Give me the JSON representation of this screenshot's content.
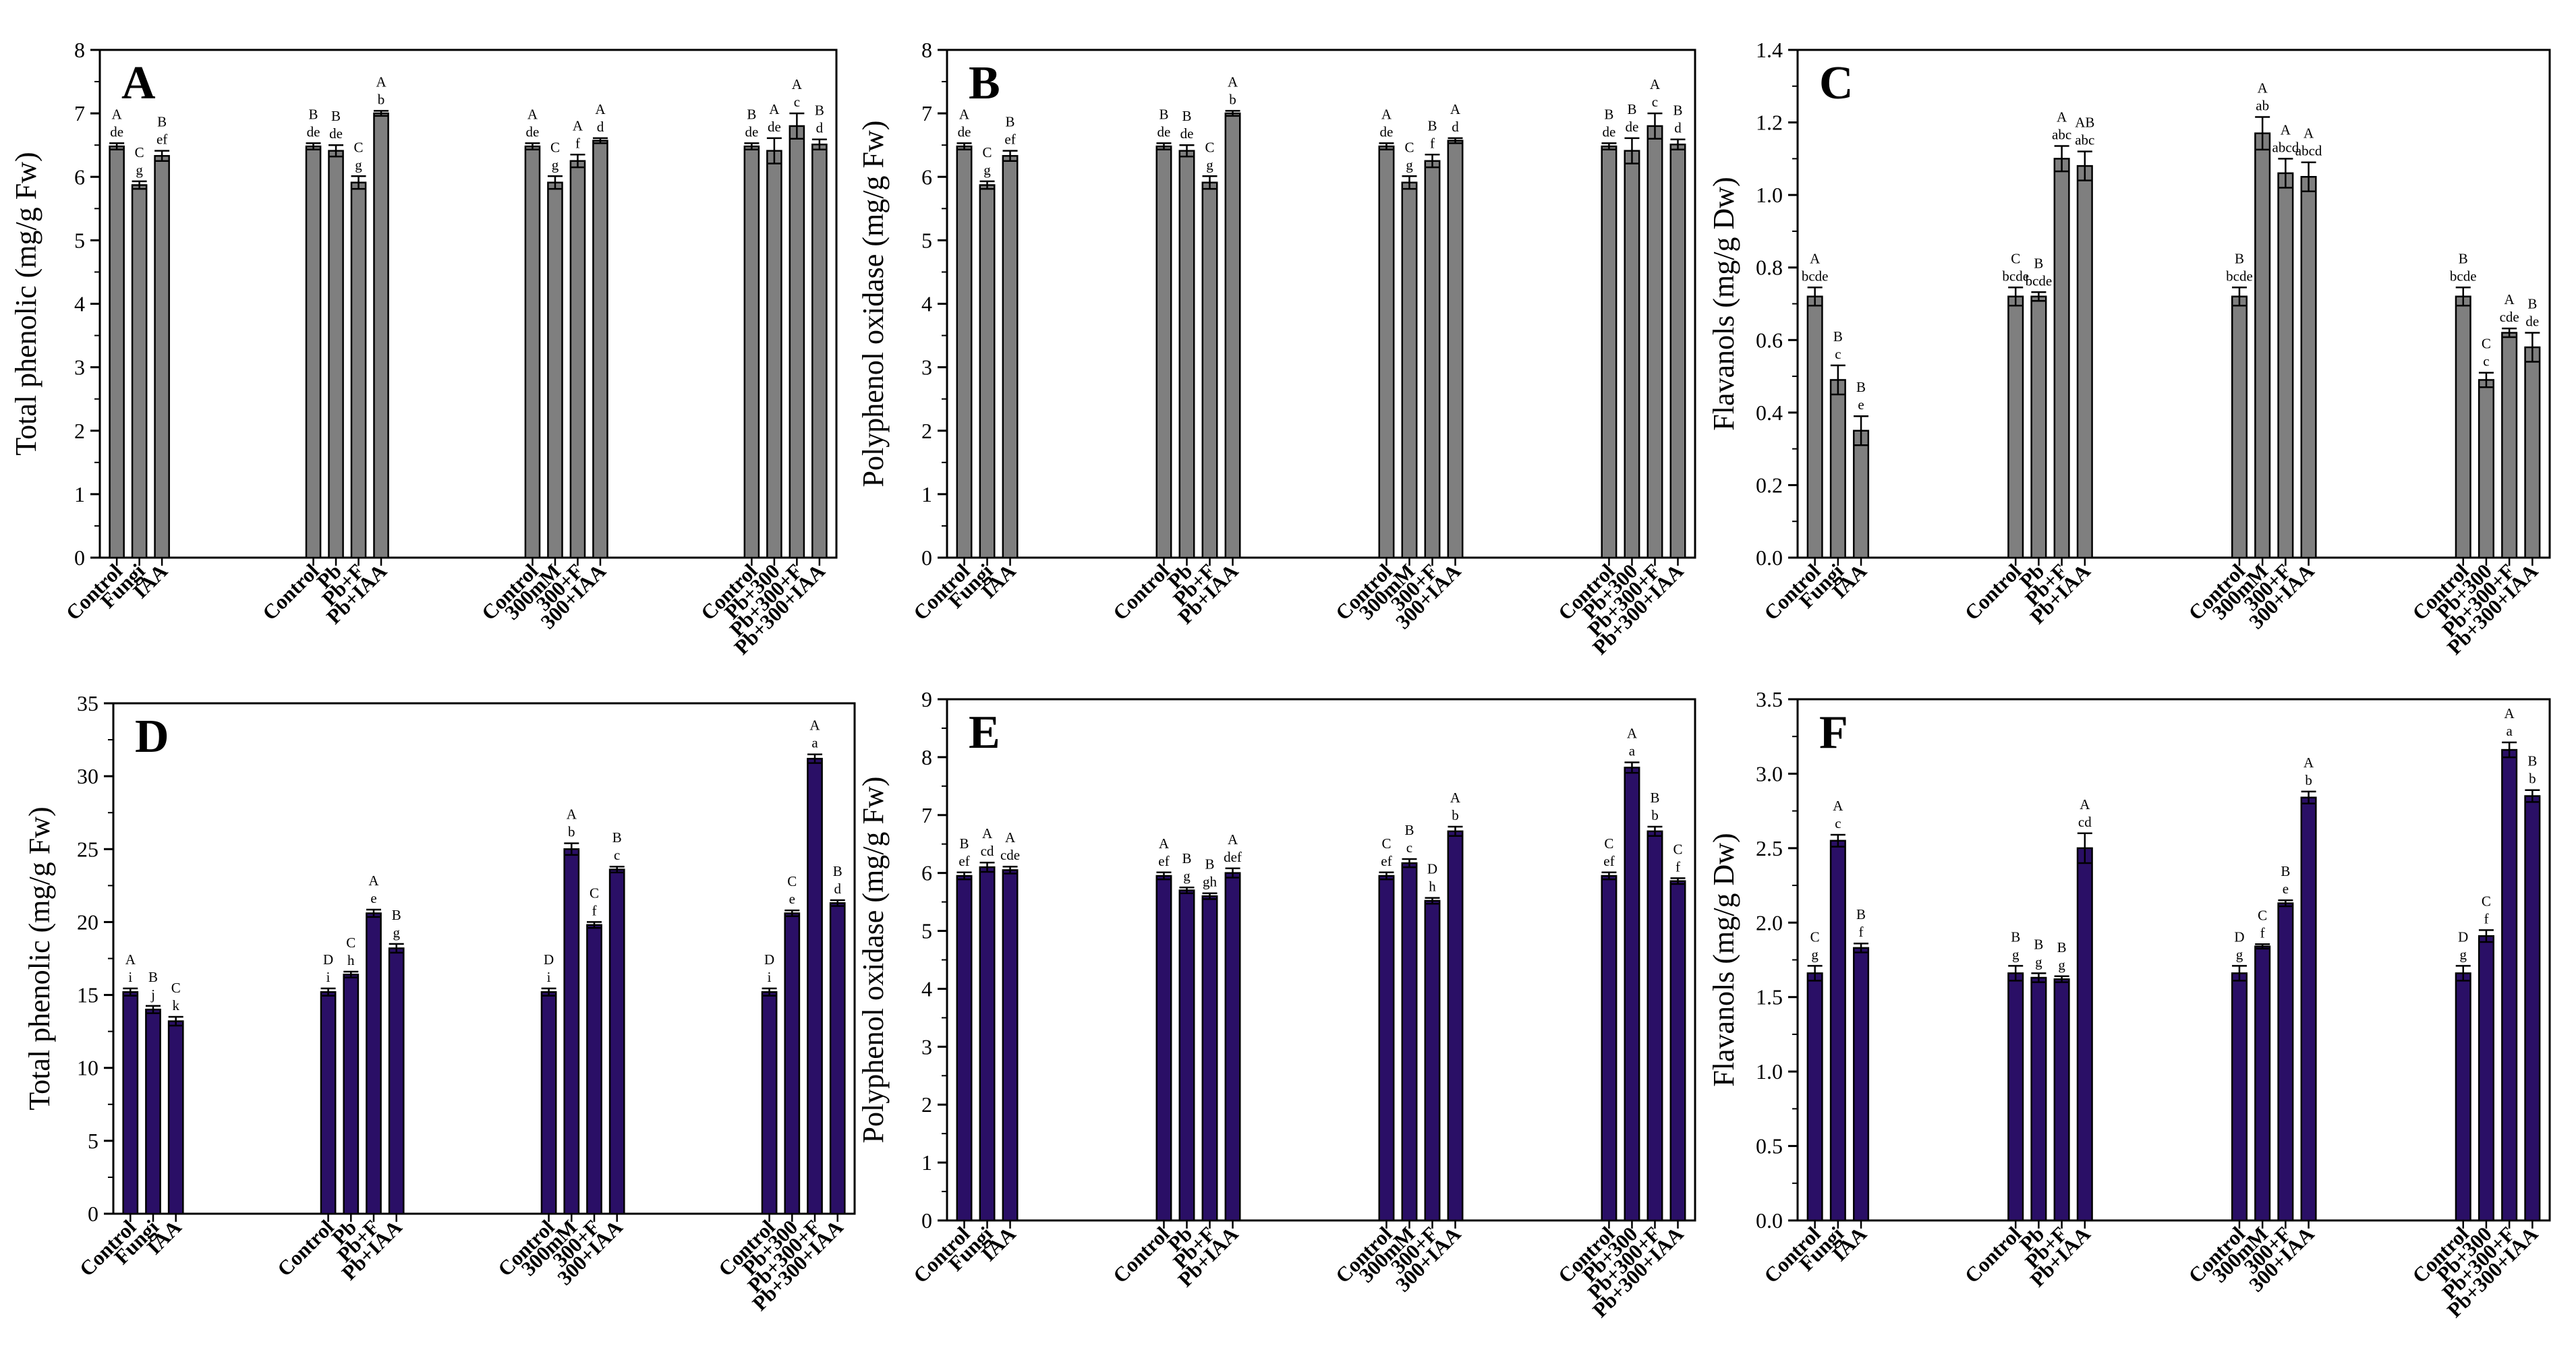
{
  "figure": {
    "background": "#ffffff"
  },
  "chart_data": [
    {
      "id": "A",
      "type": "bar",
      "panel_label": "A",
      "ylabel": "Total phenolic (mg/g Fw)",
      "ylim": [
        0,
        8
      ],
      "yticks": [
        0,
        1,
        2,
        3,
        4,
        5,
        6,
        7,
        8
      ],
      "tick_labels": [
        "0",
        "1",
        "2",
        "3",
        "4",
        "5",
        "6",
        "7",
        "8"
      ],
      "bar_color": "#7f7f7f",
      "groups": [
        {
          "categories": [
            "Control",
            "Fungi",
            "IAA"
          ],
          "values": [
            6.48,
            5.87,
            6.33
          ],
          "errors": [
            0.05,
            0.06,
            0.08
          ],
          "sig_caps": [
            "A",
            "C",
            "B"
          ],
          "sig_lower": [
            "de",
            "g",
            "ef"
          ]
        },
        {
          "categories": [
            "Control",
            "Pb",
            "Pb+F",
            "Pb+IAA"
          ],
          "values": [
            6.48,
            6.41,
            5.91,
            7.0
          ],
          "errors": [
            0.05,
            0.09,
            0.1,
            0.04
          ],
          "sig_caps": [
            "B",
            "B",
            "C",
            "A"
          ],
          "sig_lower": [
            "de",
            "de",
            "g",
            "b"
          ]
        },
        {
          "categories": [
            "Control",
            "300mM",
            "300+F",
            "300+IAA"
          ],
          "values": [
            6.48,
            5.91,
            6.25,
            6.57
          ],
          "errors": [
            0.05,
            0.1,
            0.1,
            0.04
          ],
          "sig_caps": [
            "A",
            "C",
            "A",
            "A"
          ],
          "sig_lower": [
            "de",
            "g",
            "f",
            "d"
          ]
        },
        {
          "categories": [
            "Control",
            "Pb+300",
            "Pb+300+F",
            "Pb+300+IAA"
          ],
          "values": [
            6.48,
            6.41,
            6.8,
            6.51
          ],
          "errors": [
            0.05,
            0.2,
            0.2,
            0.08
          ],
          "sig_caps": [
            "B",
            "A",
            "A",
            "B"
          ],
          "sig_lower": [
            "de",
            "de",
            "c",
            "d"
          ]
        }
      ]
    },
    {
      "id": "B",
      "type": "bar",
      "panel_label": "B",
      "ylabel": "Polyphenol oxidase (mg/g Fw)",
      "ylim": [
        0,
        8
      ],
      "yticks": [
        0,
        1,
        2,
        3,
        4,
        5,
        6,
        7,
        8
      ],
      "tick_labels": [
        "0",
        "1",
        "2",
        "3",
        "4",
        "5",
        "6",
        "7",
        "8"
      ],
      "bar_color": "#7f7f7f",
      "groups": [
        {
          "categories": [
            "Control",
            "Fungi",
            "IAA"
          ],
          "values": [
            6.48,
            5.87,
            6.33
          ],
          "errors": [
            0.05,
            0.06,
            0.08
          ],
          "sig_caps": [
            "A",
            "C",
            "B"
          ],
          "sig_lower": [
            "de",
            "g",
            "ef"
          ]
        },
        {
          "categories": [
            "Control",
            "Pb",
            "Pb+F",
            "Pb+IAA"
          ],
          "values": [
            6.48,
            6.41,
            5.91,
            7.0
          ],
          "errors": [
            0.05,
            0.09,
            0.1,
            0.04
          ],
          "sig_caps": [
            "B",
            "B",
            "C",
            "A"
          ],
          "sig_lower": [
            "de",
            "de",
            "g",
            "b"
          ]
        },
        {
          "categories": [
            "Control",
            "300mM",
            "300+F",
            "300+IAA"
          ],
          "values": [
            6.48,
            5.91,
            6.25,
            6.57
          ],
          "errors": [
            0.05,
            0.1,
            0.1,
            0.04
          ],
          "sig_caps": [
            "A",
            "C",
            "B",
            "A"
          ],
          "sig_lower": [
            "de",
            "g",
            "f",
            "d"
          ]
        },
        {
          "categories": [
            "Control",
            "Pb+300",
            "Pb+300+F",
            "Pb+300+IAA"
          ],
          "values": [
            6.48,
            6.41,
            6.8,
            6.51
          ],
          "errors": [
            0.05,
            0.2,
            0.2,
            0.08
          ],
          "sig_caps": [
            "B",
            "B",
            "A",
            "B"
          ],
          "sig_lower": [
            "de",
            "de",
            "c",
            "d"
          ]
        }
      ]
    },
    {
      "id": "C",
      "type": "bar",
      "panel_label": "C",
      "ylabel": "Flavanols (mg/g Dw)",
      "ylim": [
        0,
        1.4
      ],
      "yticks": [
        0,
        0.2,
        0.4,
        0.6,
        0.8,
        1.0,
        1.2,
        1.4
      ],
      "tick_labels": [
        "0.0",
        "0.2",
        "0.4",
        "0.6",
        "0.8",
        "1.0",
        "1.2",
        "1.4"
      ],
      "bar_color": "#7f7f7f",
      "groups": [
        {
          "categories": [
            "Control",
            "Fungi",
            "IAA"
          ],
          "values": [
            0.72,
            0.49,
            0.35
          ],
          "errors": [
            0.025,
            0.04,
            0.04
          ],
          "sig_caps": [
            "A",
            "B",
            "B"
          ],
          "sig_lower": [
            "bcde",
            "c",
            "e"
          ]
        },
        {
          "categories": [
            "Control",
            "Pb",
            "Pb+F",
            "Pb+IAA"
          ],
          "values": [
            0.72,
            0.72,
            1.1,
            1.08
          ],
          "errors": [
            0.025,
            0.012,
            0.035,
            0.04
          ],
          "sig_caps": [
            "C",
            "B",
            "A",
            "AB"
          ],
          "sig_lower": [
            "bcde",
            "bcde",
            "abc",
            "abc"
          ]
        },
        {
          "categories": [
            "Control",
            "300mM",
            "300+F",
            "300+IAA"
          ],
          "values": [
            0.72,
            1.17,
            1.06,
            1.05
          ],
          "errors": [
            0.025,
            0.045,
            0.04,
            0.04
          ],
          "sig_caps": [
            "B",
            "A",
            "A",
            "A"
          ],
          "sig_lower": [
            "bcde",
            "ab",
            "abcd",
            "abcd"
          ]
        },
        {
          "categories": [
            "Control",
            "Pb+300",
            "Pb+300+F",
            "Pb+300+IAA"
          ],
          "values": [
            0.72,
            0.49,
            0.62,
            0.58
          ],
          "errors": [
            0.025,
            0.02,
            0.012,
            0.04
          ],
          "sig_caps": [
            "B",
            "C",
            "A",
            "B"
          ],
          "sig_lower": [
            "bcde",
            "c",
            "cde",
            "de"
          ]
        }
      ]
    },
    {
      "id": "D",
      "type": "bar",
      "panel_label": "D",
      "ylabel": "Total phenolic (mg/g Fw)",
      "ylim": [
        0,
        35
      ],
      "yticks": [
        0,
        5,
        10,
        15,
        20,
        25,
        30,
        35
      ],
      "tick_labels": [
        "0",
        "5",
        "10",
        "15",
        "20",
        "25",
        "30",
        "35"
      ],
      "bar_color": "#2a0f66",
      "groups": [
        {
          "categories": [
            "Control",
            "Fungi",
            "IAA"
          ],
          "values": [
            15.2,
            14.0,
            13.2
          ],
          "errors": [
            0.25,
            0.25,
            0.3
          ],
          "sig_caps": [
            "A",
            "B",
            "C"
          ],
          "sig_lower": [
            "i",
            "j",
            "k"
          ]
        },
        {
          "categories": [
            "Control",
            "Pb",
            "Pb+F",
            "Pb+IAA"
          ],
          "values": [
            15.2,
            16.4,
            20.6,
            18.2
          ],
          "errors": [
            0.25,
            0.2,
            0.25,
            0.3
          ],
          "sig_caps": [
            "D",
            "C",
            "A",
            "B"
          ],
          "sig_lower": [
            "i",
            "h",
            "e",
            "g"
          ]
        },
        {
          "categories": [
            "Control",
            "300mM",
            "300+F",
            "300+IAA"
          ],
          "values": [
            15.2,
            25.0,
            19.8,
            23.6
          ],
          "errors": [
            0.25,
            0.4,
            0.2,
            0.2
          ],
          "sig_caps": [
            "D",
            "A",
            "C",
            "B"
          ],
          "sig_lower": [
            "i",
            "b",
            "f",
            "c"
          ]
        },
        {
          "categories": [
            "Control",
            "Pb+300",
            "Pb+300+F",
            "Pb+300+IAA"
          ],
          "values": [
            15.2,
            20.6,
            31.2,
            21.3
          ],
          "errors": [
            0.25,
            0.2,
            0.3,
            0.2
          ],
          "sig_caps": [
            "D",
            "C",
            "A",
            "B"
          ],
          "sig_lower": [
            "i",
            "e",
            "a",
            "d"
          ]
        }
      ]
    },
    {
      "id": "E",
      "type": "bar",
      "panel_label": "E",
      "ylabel": "Polyphenol oxidase (mg/g Fw)",
      "ylim": [
        0,
        9
      ],
      "yticks": [
        0,
        1,
        2,
        3,
        4,
        5,
        6,
        7,
        8,
        9
      ],
      "tick_labels": [
        "0",
        "1",
        "2",
        "3",
        "4",
        "5",
        "6",
        "7",
        "8",
        "9"
      ],
      "bar_color": "#2a0f66",
      "groups": [
        {
          "categories": [
            "Control",
            "Fungi",
            "IAA"
          ],
          "values": [
            5.95,
            6.1,
            6.05
          ],
          "errors": [
            0.06,
            0.08,
            0.06
          ],
          "sig_caps": [
            "B",
            "A",
            "A"
          ],
          "sig_lower": [
            "ef",
            "cd",
            "cde"
          ]
        },
        {
          "categories": [
            "Control",
            "Pb",
            "Pb+F",
            "Pb+IAA"
          ],
          "values": [
            5.95,
            5.7,
            5.6,
            6.0
          ],
          "errors": [
            0.06,
            0.05,
            0.05,
            0.08
          ],
          "sig_caps": [
            "A",
            "B",
            "B",
            "A"
          ],
          "sig_lower": [
            "ef",
            "g",
            "gh",
            "def"
          ]
        },
        {
          "categories": [
            "Control",
            "300mM",
            "300+F",
            "300+IAA"
          ],
          "values": [
            5.95,
            6.17,
            5.52,
            6.72
          ],
          "errors": [
            0.06,
            0.07,
            0.05,
            0.08
          ],
          "sig_caps": [
            "C",
            "B",
            "D",
            "A"
          ],
          "sig_lower": [
            "ef",
            "c",
            "h",
            "b"
          ]
        },
        {
          "categories": [
            "Control",
            "Pb+300",
            "Pb+300+F",
            "Pb+300+IAA"
          ],
          "values": [
            5.95,
            7.82,
            6.72,
            5.86
          ],
          "errors": [
            0.06,
            0.09,
            0.08,
            0.05
          ],
          "sig_caps": [
            "C",
            "A",
            "B",
            "C"
          ],
          "sig_lower": [
            "ef",
            "a",
            "b",
            "f"
          ]
        }
      ]
    },
    {
      "id": "F",
      "type": "bar",
      "panel_label": "F",
      "ylabel": "Flavanols (mg/g Dw)",
      "ylim": [
        0,
        3.5
      ],
      "yticks": [
        0,
        0.5,
        1.0,
        1.5,
        2.0,
        2.5,
        3.0,
        3.5
      ],
      "tick_labels": [
        "0.0",
        "0.5",
        "1.0",
        "1.5",
        "2.0",
        "2.5",
        "3.0",
        "3.5"
      ],
      "bar_color": "#2a0f66",
      "groups": [
        {
          "categories": [
            "Control",
            "Fungi",
            "IAA"
          ],
          "values": [
            1.66,
            2.55,
            1.83
          ],
          "errors": [
            0.05,
            0.04,
            0.03
          ],
          "sig_caps": [
            "C",
            "A",
            "B"
          ],
          "sig_lower": [
            "g",
            "c",
            "f"
          ]
        },
        {
          "categories": [
            "Control",
            "Pb",
            "Pb+F",
            "Pb+IAA"
          ],
          "values": [
            1.66,
            1.63,
            1.62,
            2.5
          ],
          "errors": [
            0.05,
            0.03,
            0.02,
            0.1
          ],
          "sig_caps": [
            "B",
            "B",
            "B",
            "A"
          ],
          "sig_lower": [
            "g",
            "g",
            "g",
            "cd"
          ]
        },
        {
          "categories": [
            "Control",
            "300mM",
            "300+F",
            "300+IAA"
          ],
          "values": [
            1.66,
            1.84,
            2.13,
            2.84
          ],
          "errors": [
            0.05,
            0.015,
            0.02,
            0.04
          ],
          "sig_caps": [
            "D",
            "C",
            "B",
            "A"
          ],
          "sig_lower": [
            "g",
            "f",
            "e",
            "b"
          ]
        },
        {
          "categories": [
            "Control",
            "Pb+300",
            "Pb+300+F",
            "Pb+300+IAA"
          ],
          "values": [
            1.66,
            1.91,
            3.16,
            2.85
          ],
          "errors": [
            0.05,
            0.04,
            0.05,
            0.04
          ],
          "sig_caps": [
            "D",
            "C",
            "A",
            "B"
          ],
          "sig_lower": [
            "g",
            "f",
            "a",
            "b"
          ]
        }
      ]
    }
  ]
}
